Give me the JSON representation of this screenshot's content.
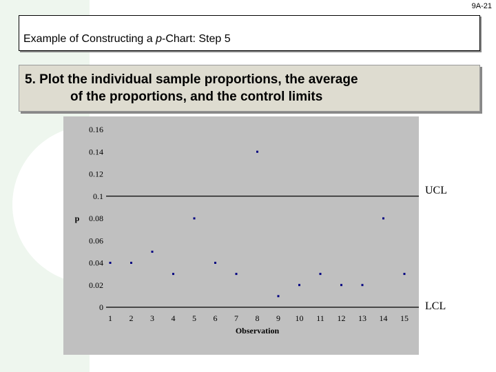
{
  "slide": {
    "number": "9A-21",
    "title_prefix": "Example of Constructing a ",
    "title_italic": "p",
    "title_suffix": "-Chart: Step 5",
    "bullet_line1": "5.  Plot the individual sample proportions, the average",
    "bullet_line2": "of the proportions, and the control limits"
  },
  "chart_data": {
    "type": "scatter",
    "xlabel": "Observation",
    "ylabel": "p",
    "x": [
      1,
      2,
      3,
      4,
      5,
      6,
      7,
      8,
      9,
      10,
      11,
      12,
      13,
      14,
      15
    ],
    "y": [
      0.04,
      0.04,
      0.05,
      0.03,
      0.08,
      0.04,
      0.03,
      0.14,
      0.01,
      0.02,
      0.03,
      0.02,
      0.02,
      0.08,
      0.03
    ],
    "x_ticks": [
      "1",
      "2",
      "3",
      "4",
      "5",
      "6",
      "7",
      "8",
      "9",
      "10",
      "11",
      "12",
      "13",
      "14",
      "15"
    ],
    "y_ticks": [
      "0",
      "0.02",
      "0.04",
      "0.06",
      "0.08",
      "0.1",
      "0.12",
      "0.14",
      "0.16"
    ],
    "ylim": [
      0,
      0.16
    ],
    "xlim": [
      1,
      15
    ],
    "lines": [
      {
        "name": "UCL",
        "value": 0.1
      },
      {
        "name": "LCL",
        "value": 0
      }
    ],
    "colors": {
      "plot_bg": "#c0c0c0",
      "point": "#000080",
      "line": "#000000"
    },
    "grid": false
  }
}
